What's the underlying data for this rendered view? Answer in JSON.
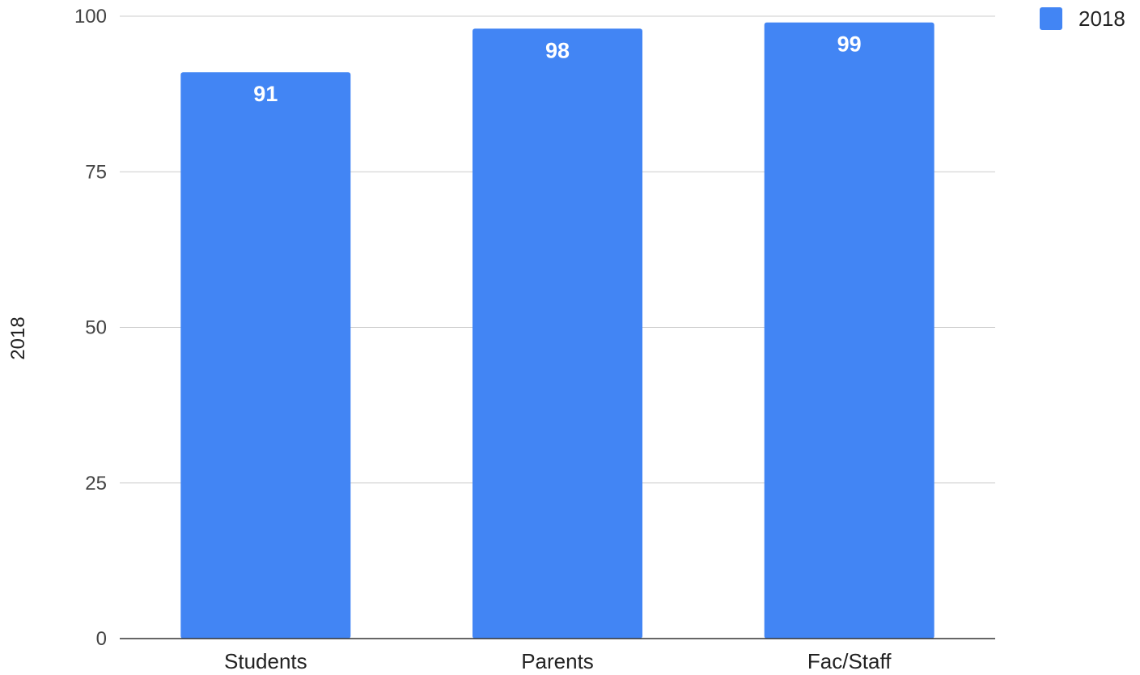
{
  "chart_data": {
    "type": "bar",
    "categories": [
      "Students",
      "Parents",
      "Fac/Staff"
    ],
    "series": [
      {
        "name": "2018",
        "values": [
          91,
          98,
          99
        ],
        "color": "#4285F4"
      }
    ],
    "ylabel": "2018",
    "ylim": [
      0,
      100
    ],
    "yticks": [
      0,
      25,
      50,
      75,
      100
    ],
    "grid": true,
    "legend": {
      "position": "top-right",
      "entries": [
        "2018"
      ]
    },
    "data_labels": [
      "91",
      "98",
      "99"
    ]
  }
}
